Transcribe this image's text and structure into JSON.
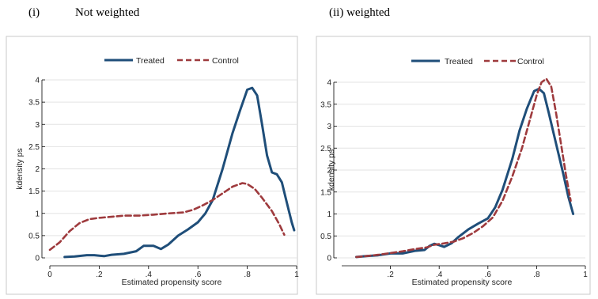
{
  "panel_headings": {
    "left_index": "(i)",
    "left_title": "Not weighted",
    "right_title": "(ii) weighted"
  },
  "chart_data": [
    {
      "type": "line",
      "xlabel": "Estimated propensity score",
      "ylabel": "kdensity ps",
      "xlim": [
        0,
        1
      ],
      "ylim": [
        0,
        4
      ],
      "x_ticks": [
        "0",
        ".2",
        ".4",
        ".6",
        ".8",
        "1"
      ],
      "y_ticks": [
        "0",
        "0.5",
        "1",
        "1.5",
        "2",
        "2.5",
        "3",
        "3.5",
        "4"
      ],
      "grid": true,
      "legend_position": "top",
      "series": [
        {
          "name": "Treated",
          "color": "#1f4e79",
          "style": "solid",
          "points": [
            [
              0.06,
              0.02
            ],
            [
              0.1,
              0.03
            ],
            [
              0.15,
              0.06
            ],
            [
              0.18,
              0.06
            ],
            [
              0.22,
              0.04
            ],
            [
              0.25,
              0.07
            ],
            [
              0.3,
              0.09
            ],
            [
              0.35,
              0.15
            ],
            [
              0.38,
              0.27
            ],
            [
              0.42,
              0.27
            ],
            [
              0.45,
              0.2
            ],
            [
              0.48,
              0.3
            ],
            [
              0.52,
              0.5
            ],
            [
              0.56,
              0.64
            ],
            [
              0.6,
              0.8
            ],
            [
              0.63,
              1.0
            ],
            [
              0.66,
              1.3
            ],
            [
              0.7,
              2.0
            ],
            [
              0.74,
              2.8
            ],
            [
              0.77,
              3.3
            ],
            [
              0.8,
              3.78
            ],
            [
              0.82,
              3.82
            ],
            [
              0.84,
              3.65
            ],
            [
              0.86,
              3.0
            ],
            [
              0.88,
              2.3
            ],
            [
              0.9,
              1.92
            ],
            [
              0.92,
              1.88
            ],
            [
              0.94,
              1.7
            ],
            [
              0.96,
              1.25
            ],
            [
              0.98,
              0.8
            ],
            [
              0.99,
              0.62
            ]
          ]
        },
        {
          "name": "Control",
          "color": "#9e3a3d",
          "style": "dashed",
          "points": [
            [
              0.0,
              0.18
            ],
            [
              0.04,
              0.35
            ],
            [
              0.08,
              0.6
            ],
            [
              0.12,
              0.78
            ],
            [
              0.16,
              0.87
            ],
            [
              0.2,
              0.9
            ],
            [
              0.24,
              0.92
            ],
            [
              0.3,
              0.95
            ],
            [
              0.36,
              0.95
            ],
            [
              0.42,
              0.97
            ],
            [
              0.48,
              1.0
            ],
            [
              0.54,
              1.02
            ],
            [
              0.58,
              1.08
            ],
            [
              0.62,
              1.18
            ],
            [
              0.66,
              1.3
            ],
            [
              0.7,
              1.45
            ],
            [
              0.74,
              1.6
            ],
            [
              0.78,
              1.68
            ],
            [
              0.8,
              1.66
            ],
            [
              0.83,
              1.55
            ],
            [
              0.86,
              1.35
            ],
            [
              0.9,
              1.05
            ],
            [
              0.93,
              0.75
            ],
            [
              0.95,
              0.52
            ]
          ]
        }
      ]
    },
    {
      "type": "line",
      "xlabel": "Estimated propensity score",
      "ylabel": "kdensity ps",
      "xlim": [
        0,
        1
      ],
      "ylim": [
        0,
        4
      ],
      "x_ticks": [
        ".2",
        ".4",
        ".6",
        ".8",
        "1"
      ],
      "y_ticks": [
        "0",
        "0.5",
        "1",
        "1.5",
        "2",
        "2.5",
        "3",
        "3.5",
        "4"
      ],
      "grid": true,
      "legend_position": "top",
      "series": [
        {
          "name": "Treated",
          "color": "#1f4e79",
          "style": "solid",
          "points": [
            [
              0.06,
              0.02
            ],
            [
              0.1,
              0.04
            ],
            [
              0.15,
              0.06
            ],
            [
              0.2,
              0.1
            ],
            [
              0.25,
              0.1
            ],
            [
              0.3,
              0.16
            ],
            [
              0.34,
              0.18
            ],
            [
              0.36,
              0.27
            ],
            [
              0.38,
              0.32
            ],
            [
              0.4,
              0.29
            ],
            [
              0.42,
              0.25
            ],
            [
              0.45,
              0.33
            ],
            [
              0.48,
              0.48
            ],
            [
              0.52,
              0.65
            ],
            [
              0.56,
              0.78
            ],
            [
              0.6,
              0.9
            ],
            [
              0.63,
              1.15
            ],
            [
              0.66,
              1.55
            ],
            [
              0.7,
              2.25
            ],
            [
              0.73,
              2.9
            ],
            [
              0.76,
              3.4
            ],
            [
              0.79,
              3.8
            ],
            [
              0.81,
              3.85
            ],
            [
              0.83,
              3.75
            ],
            [
              0.85,
              3.3
            ],
            [
              0.88,
              2.6
            ],
            [
              0.91,
              1.9
            ],
            [
              0.93,
              1.4
            ],
            [
              0.95,
              1.0
            ]
          ]
        },
        {
          "name": "Control",
          "color": "#9e3a3d",
          "style": "dashed",
          "points": [
            [
              0.06,
              0.02
            ],
            [
              0.1,
              0.04
            ],
            [
              0.15,
              0.07
            ],
            [
              0.2,
              0.11
            ],
            [
              0.25,
              0.15
            ],
            [
              0.3,
              0.2
            ],
            [
              0.35,
              0.24
            ],
            [
              0.38,
              0.3
            ],
            [
              0.42,
              0.33
            ],
            [
              0.46,
              0.37
            ],
            [
              0.5,
              0.45
            ],
            [
              0.54,
              0.57
            ],
            [
              0.58,
              0.72
            ],
            [
              0.62,
              0.92
            ],
            [
              0.66,
              1.3
            ],
            [
              0.7,
              1.85
            ],
            [
              0.74,
              2.5
            ],
            [
              0.77,
              3.1
            ],
            [
              0.8,
              3.7
            ],
            [
              0.82,
              4.0
            ],
            [
              0.84,
              4.08
            ],
            [
              0.86,
              3.9
            ],
            [
              0.88,
              3.3
            ],
            [
              0.9,
              2.6
            ],
            [
              0.92,
              1.9
            ],
            [
              0.94,
              1.3
            ]
          ]
        }
      ]
    }
  ]
}
